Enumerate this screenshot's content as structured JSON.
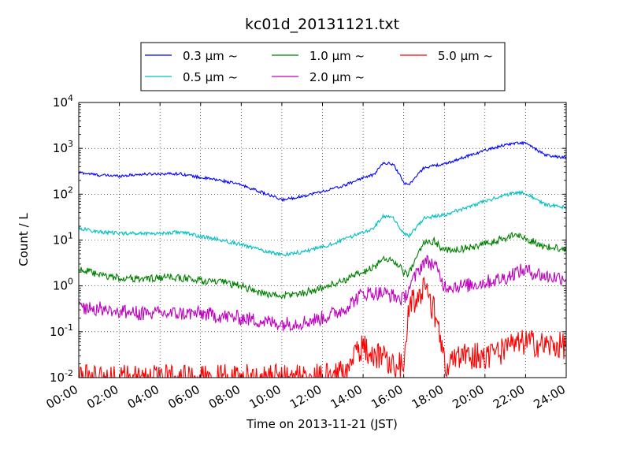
{
  "chart_data": {
    "type": "line",
    "title": "kc01d_20131121.txt",
    "xlabel": "Time on 2013-11-21 (JST)",
    "ylabel": "Count / L",
    "xlim": [
      "00:00",
      "24:00"
    ],
    "ylim": [
      0.01,
      10000
    ],
    "y_scale": "log",
    "grid": true,
    "legend_position": "top-center",
    "x_ticks": [
      "00:00",
      "02:00",
      "04:00",
      "06:00",
      "08:00",
      "10:00",
      "12:00",
      "14:00",
      "16:00",
      "18:00",
      "20:00",
      "22:00",
      "24:00"
    ],
    "y_ticks": [
      {
        "value": 0.01,
        "base": "10",
        "exp": "-2"
      },
      {
        "value": 0.1,
        "base": "10",
        "exp": "-1"
      },
      {
        "value": 1,
        "base": "10",
        "exp": "0"
      },
      {
        "value": 10,
        "base": "10",
        "exp": "1"
      },
      {
        "value": 100,
        "base": "10",
        "exp": "2"
      },
      {
        "value": 1000,
        "base": "10",
        "exp": "3"
      },
      {
        "value": 10000,
        "base": "10",
        "exp": "4"
      }
    ],
    "x": [
      "00:00",
      "01:00",
      "02:00",
      "03:00",
      "04:00",
      "05:00",
      "06:00",
      "07:00",
      "08:00",
      "09:00",
      "10:00",
      "11:00",
      "12:00",
      "13:00",
      "14:00",
      "14:30",
      "15:00",
      "15:30",
      "16:00",
      "16:15",
      "17:00",
      "17:30",
      "18:00",
      "19:00",
      "20:00",
      "21:00",
      "21:30",
      "22:00",
      "23:00",
      "24:00"
    ],
    "series": [
      {
        "name": "0.3 μm ~",
        "color": "#0000ff",
        "noise": 0.03,
        "values": [
          300,
          260,
          250,
          270,
          280,
          280,
          230,
          200,
          160,
          110,
          75,
          90,
          115,
          150,
          230,
          260,
          480,
          450,
          180,
          160,
          380,
          420,
          450,
          650,
          900,
          1200,
          1300,
          1300,
          700,
          620
        ]
      },
      {
        "name": "0.5 μm ~",
        "color": "#00bfbf",
        "noise": 0.04,
        "values": [
          18,
          15,
          14,
          14,
          14,
          15,
          12,
          10,
          8,
          6,
          4.8,
          5.5,
          7,
          10,
          15,
          18,
          33,
          30,
          14,
          12,
          30,
          33,
          35,
          50,
          70,
          95,
          110,
          105,
          58,
          52
        ]
      },
      {
        "name": "1.0 μm ~",
        "color": "#008000",
        "noise": 0.08,
        "values": [
          2.4,
          1.7,
          1.5,
          1.4,
          1.5,
          1.5,
          1.3,
          1.2,
          1.0,
          0.7,
          0.6,
          0.7,
          0.9,
          1.3,
          2.0,
          2.5,
          4.0,
          3.6,
          2.0,
          1.8,
          9.0,
          9.5,
          6.0,
          6.5,
          8.0,
          11,
          13,
          11,
          7.0,
          6.5
        ]
      },
      {
        "name": "2.0 μm ~",
        "color": "#bf00bf",
        "noise": 0.16,
        "values": [
          0.35,
          0.32,
          0.28,
          0.25,
          0.25,
          0.25,
          0.25,
          0.22,
          0.2,
          0.17,
          0.15,
          0.16,
          0.2,
          0.3,
          0.7,
          0.7,
          0.7,
          0.6,
          0.5,
          0.9,
          3.5,
          3.0,
          1.0,
          1.0,
          1.2,
          1.5,
          2.0,
          2.2,
          1.6,
          1.5
        ]
      },
      {
        "name": "5.0 μm ~",
        "color": "#ff0000",
        "noise": 0.3,
        "values": [
          0.01,
          0.01,
          0.01,
          0.01,
          0.01,
          0.01,
          0.01,
          0.01,
          0.01,
          0.01,
          0.01,
          0.01,
          0.01,
          0.012,
          0.05,
          0.03,
          0.03,
          0.02,
          0.02,
          0.4,
          0.8,
          0.3,
          0.02,
          0.03,
          0.03,
          0.04,
          0.05,
          0.06,
          0.05,
          0.05
        ]
      }
    ]
  }
}
